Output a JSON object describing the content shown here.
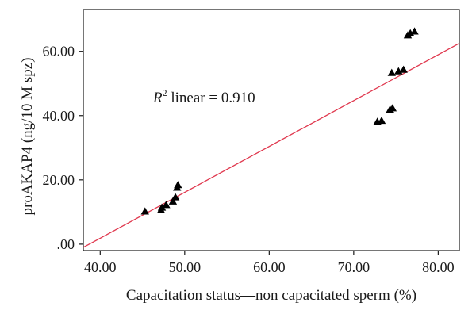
{
  "chart_data": {
    "type": "scatter",
    "title": "",
    "xlabel": "Capacitation status—non capacitated sperm (%)",
    "ylabel": "proAKAP4 (ng/10 M spz)",
    "xlim": [
      38.0,
      82.5
    ],
    "ylim": [
      -2.0,
      73.0
    ],
    "x_ticks": [
      40,
      50,
      60,
      70,
      80
    ],
    "x_tick_labels": [
      "40.00",
      "50.00",
      "60.00",
      "70.00",
      "80.00"
    ],
    "y_ticks": [
      0,
      20,
      40,
      60
    ],
    "y_tick_labels": [
      ".00",
      "20.00",
      "40.00",
      "60.00"
    ],
    "marker": "triangle",
    "marker_color": "#000000",
    "fit_line": {
      "type": "linear",
      "color": "#e0384e",
      "points": [
        [
          38.0,
          -1.0
        ],
        [
          82.5,
          62.5
        ]
      ]
    },
    "annotation": {
      "r_symbol": "R",
      "r_exponent": "2",
      "text": " linear = 0.910"
    },
    "points": [
      {
        "x": 45.3,
        "y": 10.2
      },
      {
        "x": 47.2,
        "y": 10.6
      },
      {
        "x": 47.3,
        "y": 11.4
      },
      {
        "x": 47.8,
        "y": 12.2
      },
      {
        "x": 48.6,
        "y": 13.3
      },
      {
        "x": 48.9,
        "y": 14.6
      },
      {
        "x": 49.1,
        "y": 17.6
      },
      {
        "x": 49.2,
        "y": 18.4
      },
      {
        "x": 72.8,
        "y": 38.1
      },
      {
        "x": 73.3,
        "y": 38.4
      },
      {
        "x": 74.3,
        "y": 41.9
      },
      {
        "x": 74.6,
        "y": 42.3
      },
      {
        "x": 74.5,
        "y": 53.3
      },
      {
        "x": 75.3,
        "y": 53.8
      },
      {
        "x": 75.9,
        "y": 54.3
      },
      {
        "x": 76.4,
        "y": 65.0
      },
      {
        "x": 76.7,
        "y": 65.6
      },
      {
        "x": 77.2,
        "y": 66.2
      }
    ]
  }
}
